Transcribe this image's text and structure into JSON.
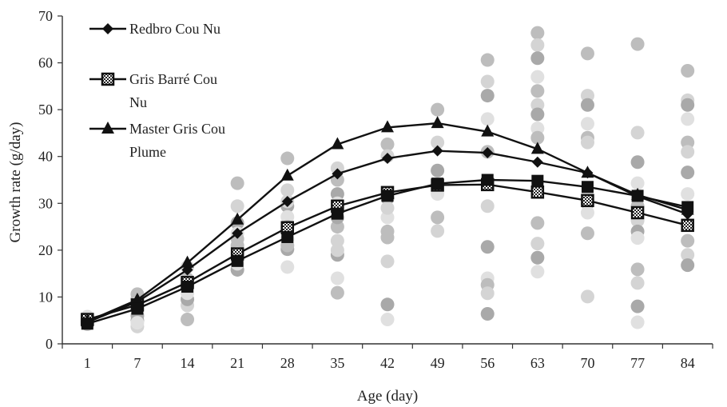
{
  "chart_data": {
    "type": "line",
    "title": "",
    "xlabel": "Age (day)",
    "ylabel": "Growth rate (g/day)",
    "ylim": [
      0,
      70
    ],
    "yticks": [
      0,
      10,
      20,
      30,
      40,
      50,
      60,
      70
    ],
    "categories": [
      "1",
      "7",
      "14",
      "21",
      "28",
      "35",
      "42",
      "49",
      "56",
      "63",
      "70",
      "77",
      "84"
    ],
    "grid": false,
    "legend_position": "top-left",
    "series": [
      {
        "name": "Redbro Cou Nu",
        "marker": "diamond",
        "values": [
          4.6,
          9.0,
          15.8,
          23.6,
          30.4,
          36.3,
          39.6,
          41.2,
          40.8,
          38.8,
          36.5,
          31.5,
          27.7
        ]
      },
      {
        "name": "Gris Barré Cou Nu",
        "marker": "square-hatched",
        "values": [
          5.2,
          8.3,
          13.1,
          19.2,
          24.8,
          29.4,
          32.3,
          33.9,
          34.0,
          32.4,
          30.6,
          28.0,
          25.3
        ]
      },
      {
        "name": "Master Gris Cou Plume",
        "marker": "triangle",
        "values": [
          4.8,
          9.4,
          17.3,
          26.5,
          35.9,
          42.6,
          46.2,
          47.1,
          45.3,
          41.6,
          36.5,
          31.8,
          28.6
        ]
      },
      {
        "name": "",
        "marker": "square",
        "values": [
          4.3,
          7.5,
          12.2,
          17.7,
          22.8,
          27.8,
          31.6,
          34.2,
          35.0,
          34.8,
          33.5,
          31.6,
          29.2
        ]
      }
    ],
    "scatter": [
      {
        "x": "1",
        "y": [
          5.0,
          5.4,
          4.6,
          5.8,
          4.2,
          5.2
        ]
      },
      {
        "x": "7",
        "y": [
          10.6,
          3.7,
          5.0,
          7.5,
          9.6,
          8.7,
          6.0,
          4.5
        ]
      },
      {
        "x": "14",
        "y": [
          5.2,
          8.2,
          9.5,
          11.5,
          13.8,
          16.4,
          12.6,
          10.8
        ]
      },
      {
        "x": "21",
        "y": [
          34.3,
          29.4,
          25.8,
          23.6,
          21.0,
          19.3,
          15.8,
          17.1,
          22.4
        ]
      },
      {
        "x": "28",
        "y": [
          39.6,
          32.8,
          29.4,
          27.1,
          25.0,
          22.4,
          20.2,
          16.4,
          21.0,
          30.4
        ]
      },
      {
        "x": "35",
        "y": [
          35.0,
          37.5,
          32.0,
          30.0,
          25.0,
          22.0,
          19.0,
          14.0,
          10.9,
          20.0,
          27.0
        ]
      },
      {
        "x": "42",
        "y": [
          42.6,
          40.1,
          31.1,
          27.0,
          24.0,
          17.6,
          8.4,
          5.2,
          22.7,
          29.0
        ]
      },
      {
        "x": "49",
        "y": [
          50.0,
          43.0,
          37.0,
          32.0,
          27.0,
          24.1
        ]
      },
      {
        "x": "56",
        "y": [
          60.6,
          56.0,
          53.0,
          48.0,
          41.0,
          29.4,
          20.7,
          14.0,
          12.6,
          10.8,
          6.4
        ]
      },
      {
        "x": "63",
        "y": [
          66.4,
          63.8,
          61.0,
          57.0,
          54.0,
          51.0,
          49.0,
          46.0,
          25.8,
          21.4,
          18.4,
          15.4,
          44.0
        ]
      },
      {
        "x": "70",
        "y": [
          62.0,
          53.0,
          51.0,
          47.0,
          44.0,
          43.0,
          30.0,
          28.0,
          23.6,
          10.1
        ]
      },
      {
        "x": "77",
        "y": [
          64.0,
          45.1,
          38.8,
          34.3,
          29.4,
          26.3,
          24.0,
          22.6,
          15.9,
          13.0,
          8.0,
          4.6
        ]
      },
      {
        "x": "84",
        "y": [
          58.3,
          52.0,
          51.0,
          48.0,
          43.0,
          41.0,
          36.6,
          32.0,
          22.0,
          19.0,
          16.8
        ]
      }
    ],
    "colors": {
      "line": "#111111",
      "scatter": [
        "#bdbdbd",
        "#d4d4d4",
        "#a9a9a9",
        "#e0e0e0"
      ],
      "axis": "#333333"
    }
  },
  "legend": [
    {
      "lines": [
        "Redbro Cou Nu"
      ]
    },
    {
      "lines": [
        "Gris Barré Cou",
        "Nu"
      ]
    },
    {
      "lines": [
        "Master Gris Cou",
        "Plume"
      ]
    }
  ]
}
